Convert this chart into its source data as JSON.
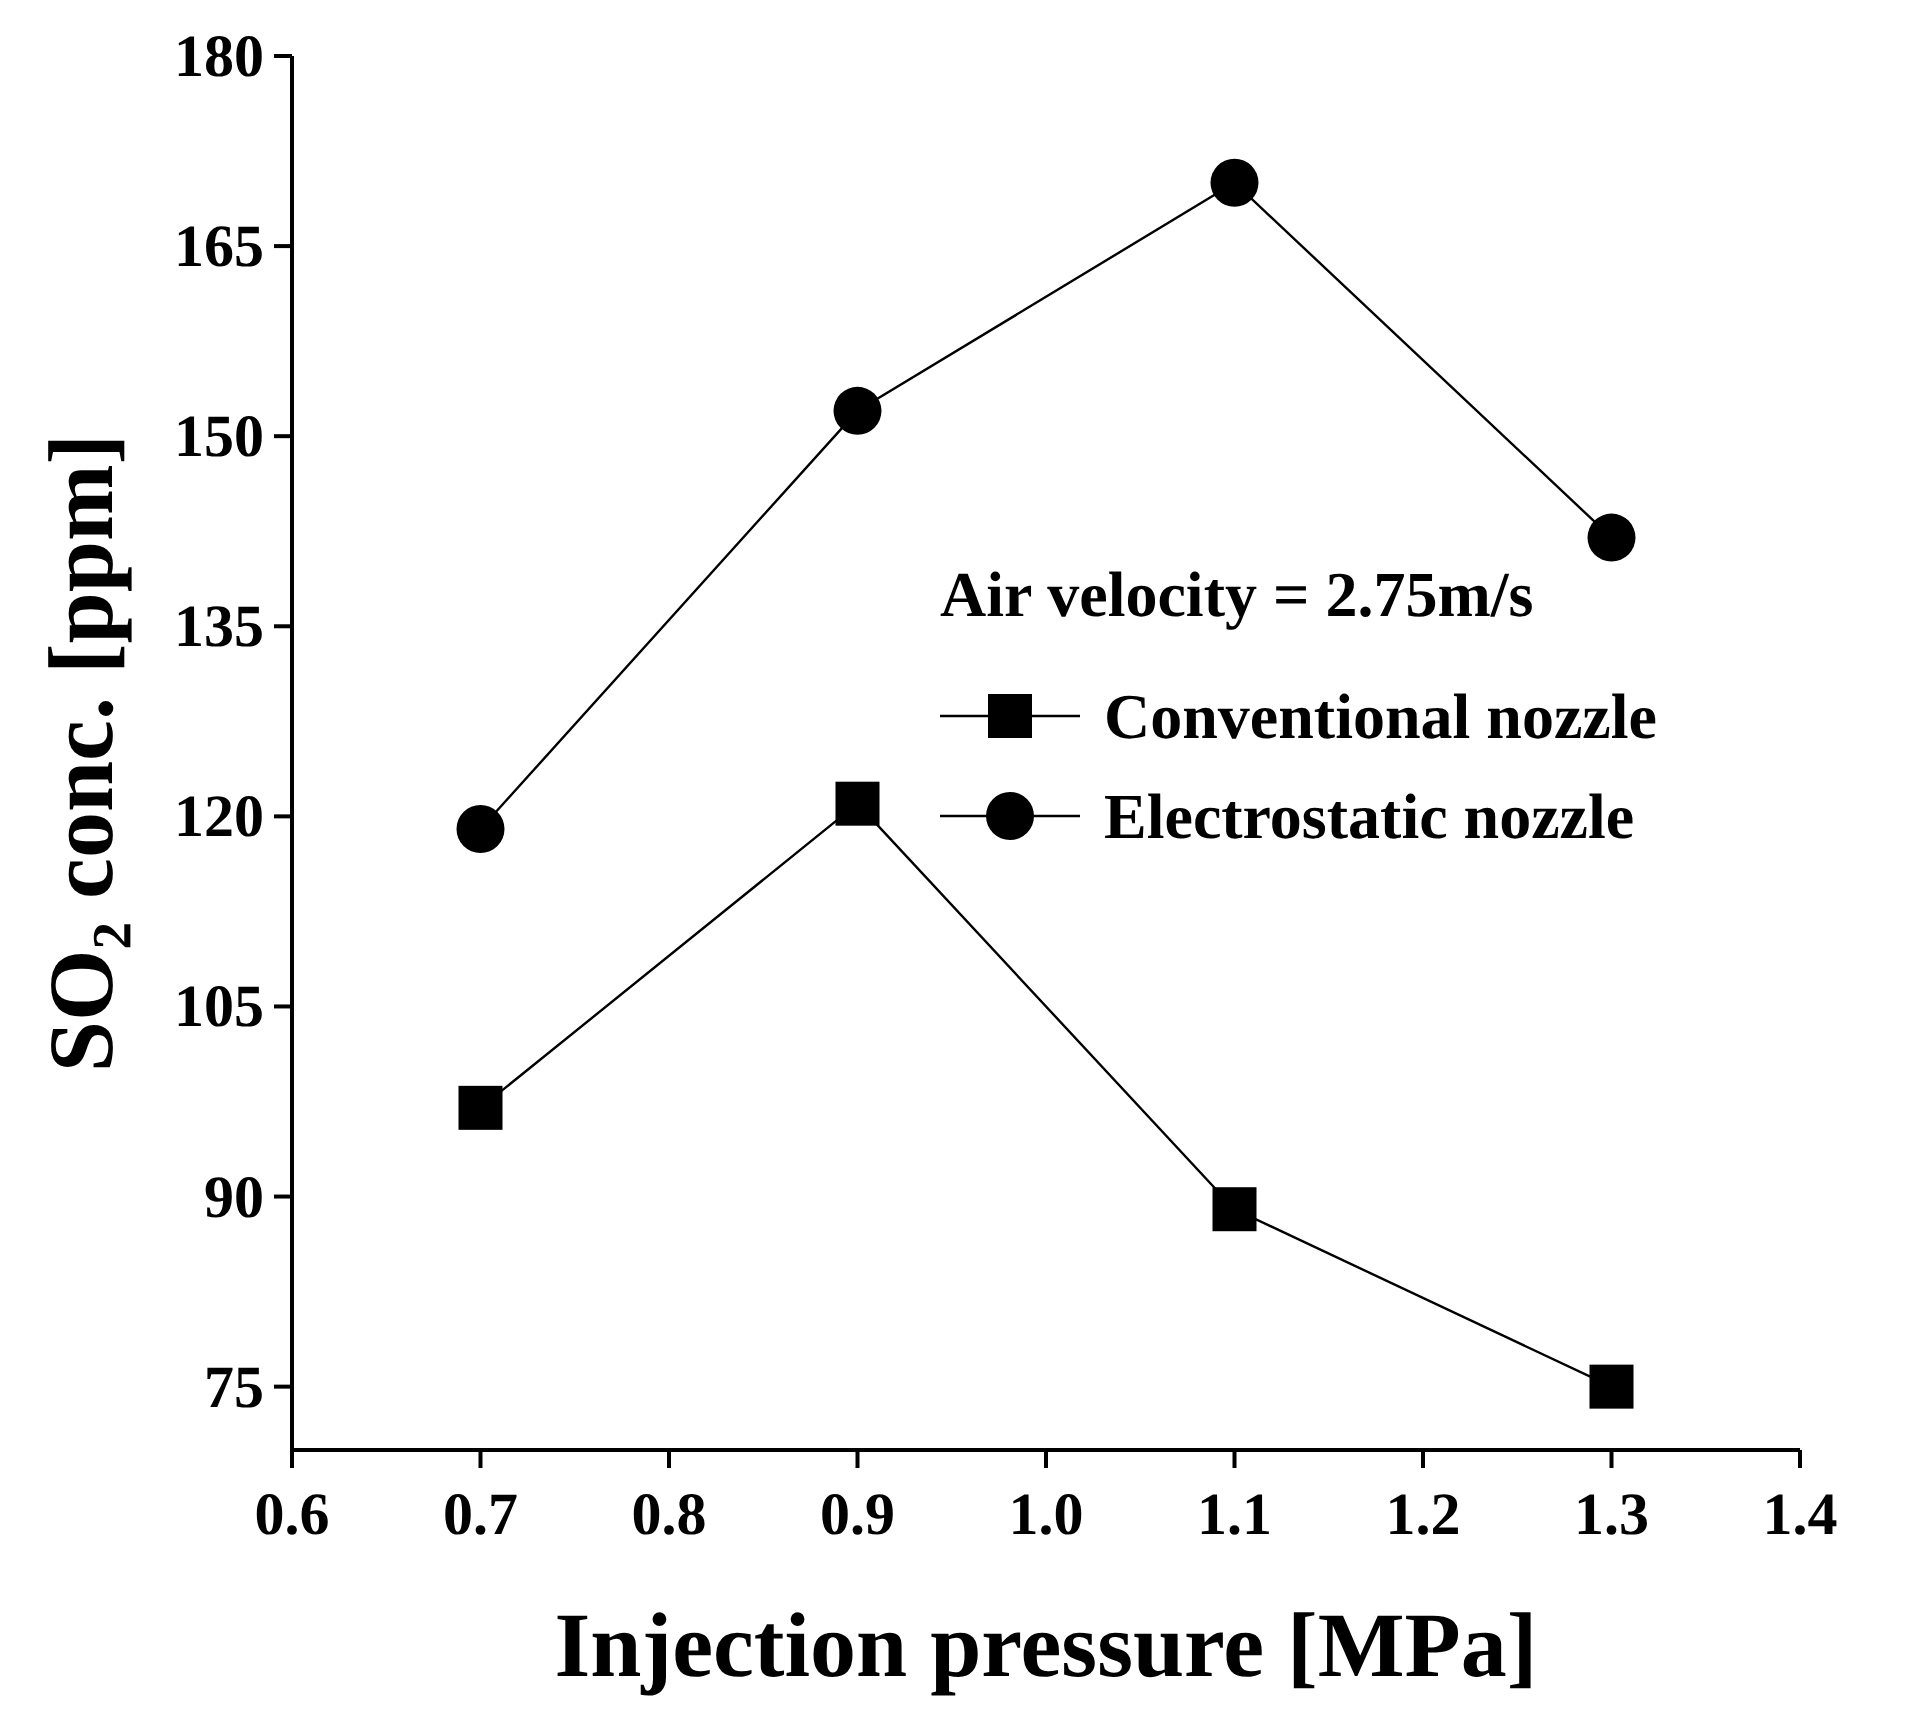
{
  "chart_data": {
    "type": "line",
    "xlabel": "Injection pressure [MPa]",
    "ylabel": "SO₂ conc. [ppm]",
    "legend_title": "Air velocity = 2.75m/s",
    "legend": "right",
    "x": [
      0.7,
      0.9,
      1.1,
      1.3
    ],
    "series": [
      {
        "name": "Conventional nozzle",
        "color": "#000000",
        "marker": "square",
        "values": [
          97,
          121,
          89,
          75
        ]
      },
      {
        "name": "Electrostatic nozzle",
        "color": "#000000",
        "marker": "circle",
        "values": [
          119,
          152,
          170,
          142
        ]
      }
    ],
    "xlim": [
      0.6,
      1.4
    ],
    "xticks": [
      0.6,
      0.7,
      0.8,
      0.9,
      {
        "value": 1,
        "label": "1.0"
      },
      1.1,
      1.2,
      1.3,
      1.4
    ],
    "ylim": [
      70,
      180
    ],
    "yticks": [
      75,
      90,
      105,
      120,
      135,
      150,
      165,
      180
    ],
    "grid": false,
    "line_style": "solid"
  }
}
